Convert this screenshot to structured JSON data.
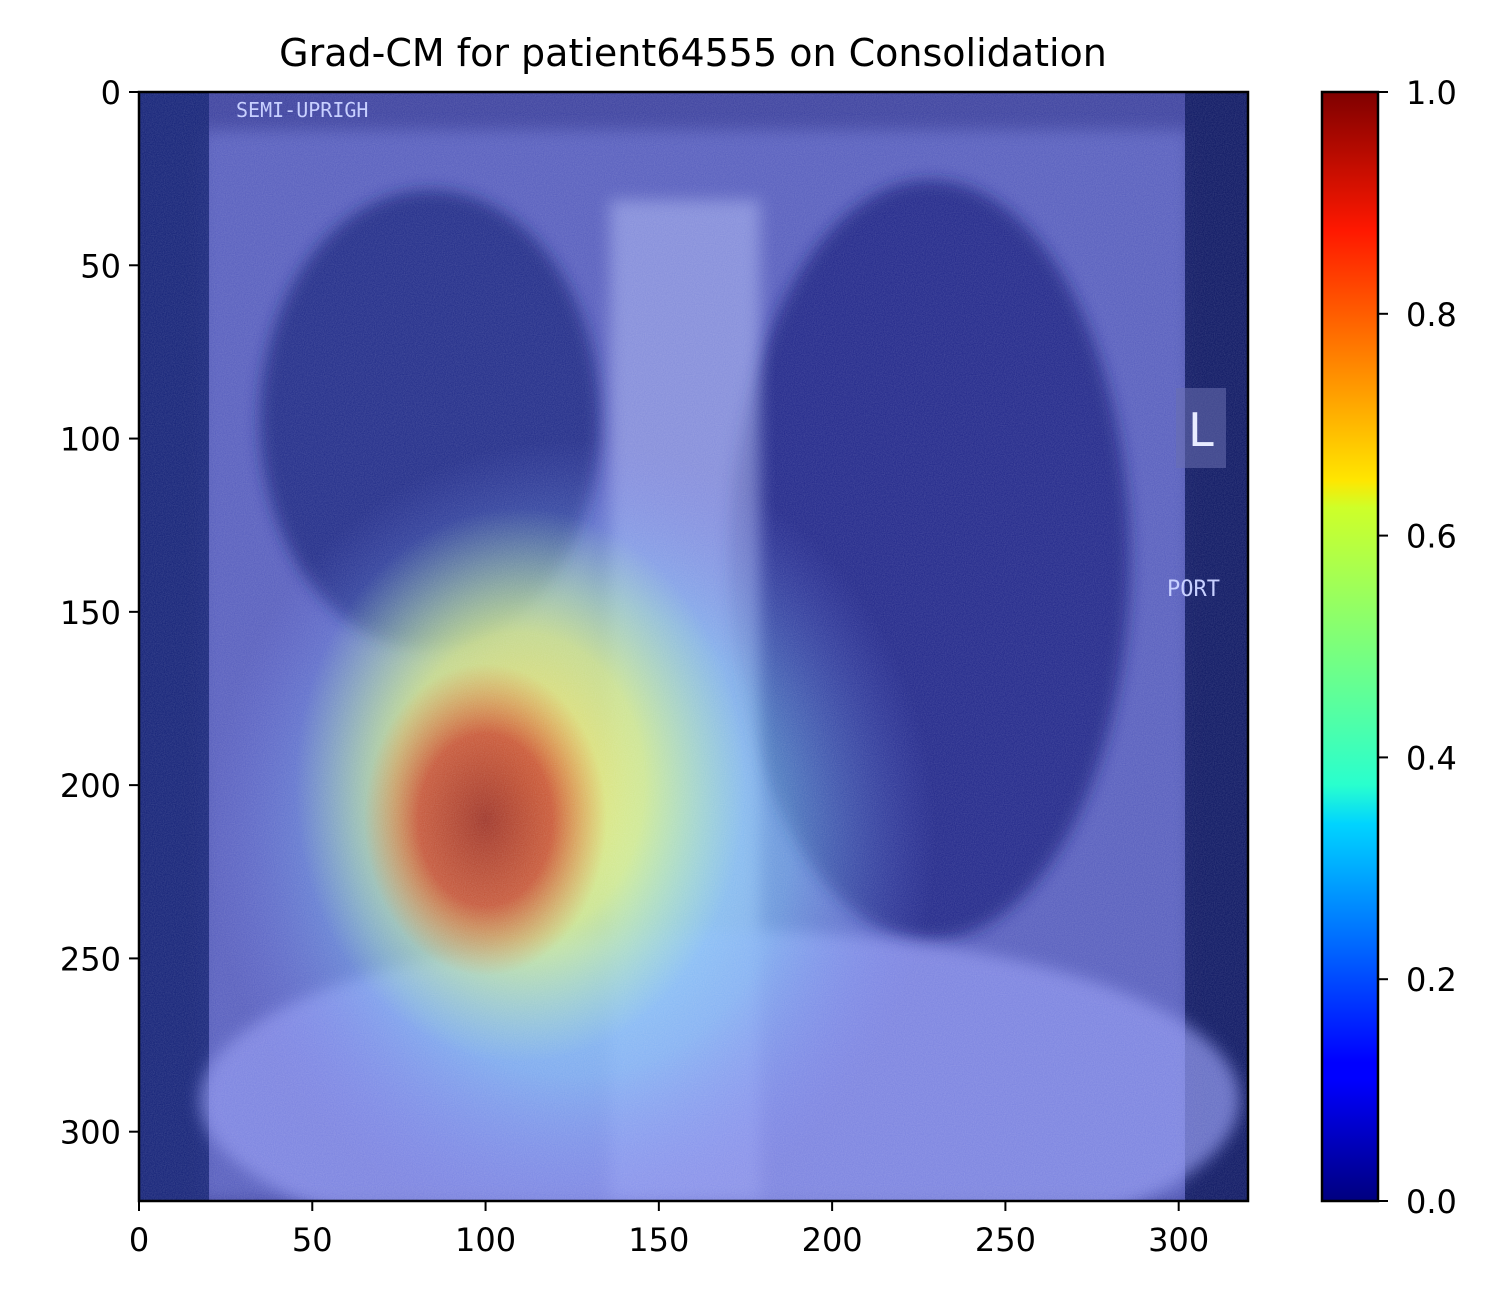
{
  "chart_data": {
    "type": "heatmap",
    "title": "Grad-CM for patient64555 on Consolidation",
    "xlabel": "",
    "ylabel": "",
    "xlim": [
      0,
      320
    ],
    "ylim": [
      320,
      0
    ],
    "x_ticks": [
      0,
      50,
      100,
      150,
      200,
      250,
      300
    ],
    "y_ticks": [
      0,
      50,
      100,
      150,
      200,
      250,
      300
    ],
    "x_tick_labels": [
      "0",
      "50",
      "100",
      "150",
      "200",
      "250",
      "300"
    ],
    "y_tick_labels": [
      "0",
      "50",
      "100",
      "150",
      "200",
      "250",
      "300"
    ],
    "colorbar": {
      "colormap": "jet",
      "range": [
        0,
        1
      ],
      "ticks": [
        0.0,
        0.2,
        0.4,
        0.6,
        0.8,
        1.0
      ],
      "tick_labels": [
        "0.0",
        "0.2",
        "0.4",
        "0.6",
        "0.8",
        "1.0"
      ]
    },
    "activation_peak": {
      "x": 100,
      "y": 210,
      "value": 1.0
    },
    "activation_regions": [
      {
        "x": 100,
        "y": 210,
        "value": 1.0,
        "rx": 35,
        "ry": 45
      },
      {
        "x": 110,
        "y": 200,
        "value": 0.75,
        "rx": 65,
        "ry": 80
      },
      {
        "x": 125,
        "y": 215,
        "value": 0.4,
        "rx": 105,
        "ry": 115
      }
    ],
    "image_annotations": [
      "SEMI-UPRIGH",
      "L",
      "PORT"
    ]
  }
}
